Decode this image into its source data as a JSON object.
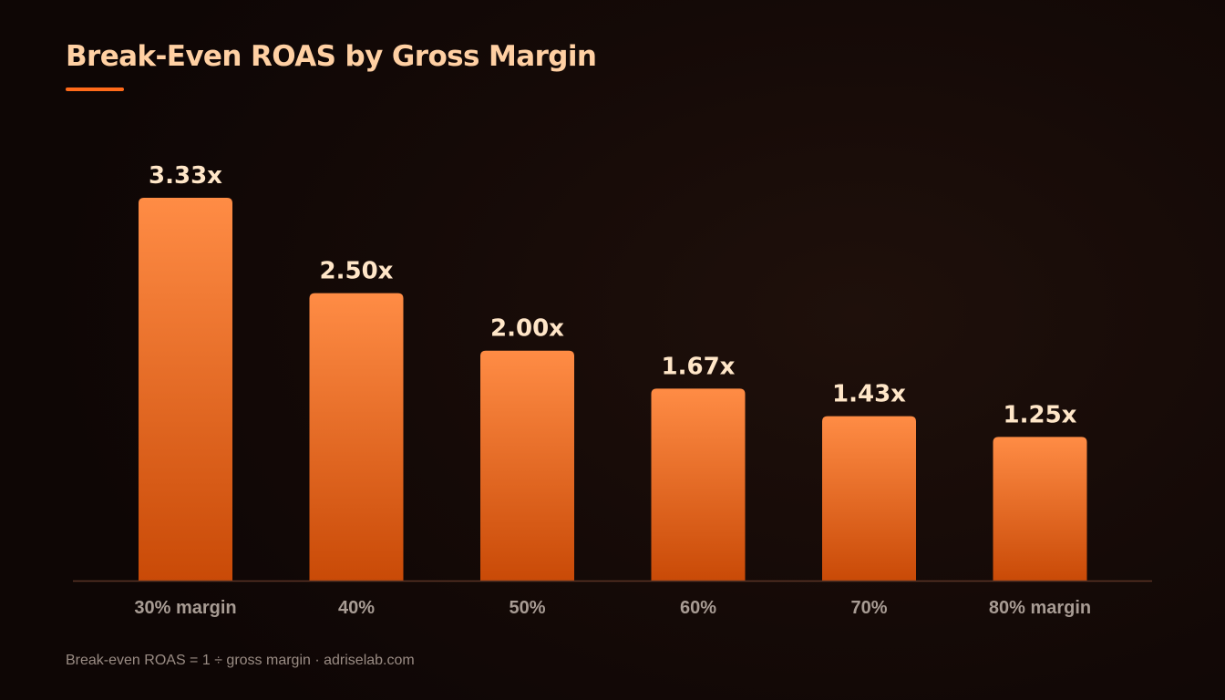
{
  "chart_data": {
    "type": "bar",
    "title": "Break-Even ROAS by Gross Margin",
    "categories": [
      "30% margin",
      "40%",
      "50%",
      "60%",
      "70%",
      "80% margin"
    ],
    "values": [
      3.33,
      2.5,
      2.0,
      1.67,
      1.43,
      1.25
    ],
    "data_labels": [
      "3.33x",
      "2.50x",
      "2.00x",
      "1.67x",
      "1.43x",
      "1.25x"
    ],
    "xlabel": "",
    "ylabel": "",
    "ylim": [
      0,
      3.33
    ],
    "grid": false,
    "legend": "none"
  },
  "footnote": "Break-even ROAS = 1 ÷ gross margin · adriselab.com",
  "colors": {
    "background": "#120907",
    "title": "#ffd0a3",
    "accent": "#ff6a1a",
    "bar_top": "#ff8c45",
    "bar_bottom": "#c94a07",
    "value_label": "#ffe6c8",
    "category_label": "#a89c94",
    "baseline": "#5a3426"
  }
}
